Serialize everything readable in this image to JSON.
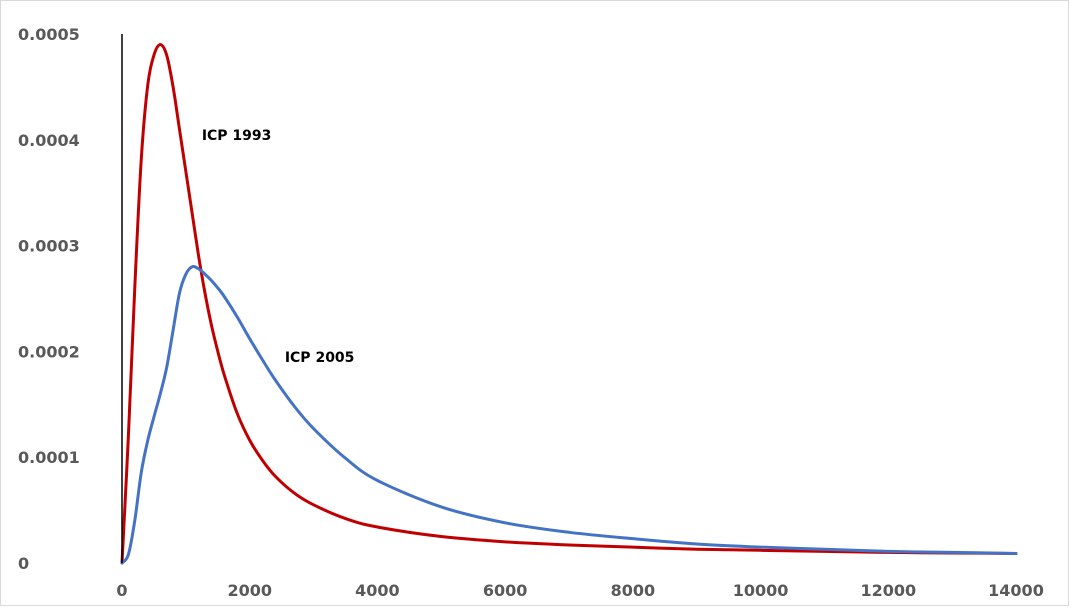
{
  "chart_data": {
    "type": "line",
    "title": "",
    "xlabel": "",
    "ylabel": "",
    "xlim": [
      0,
      14000
    ],
    "ylim": [
      0,
      0.0005
    ],
    "x_ticks": [
      0,
      2000,
      4000,
      6000,
      8000,
      10000,
      12000,
      14000
    ],
    "x_tick_labels": [
      "0",
      "2000",
      "4000",
      "6000",
      "8000",
      "10000",
      "12000",
      "14000"
    ],
    "y_ticks": [
      0,
      0.0001,
      0.0002,
      0.0003,
      0.0004,
      0.0005
    ],
    "y_tick_labels": [
      "0",
      "0.0001",
      "0.0002",
      "0.0003",
      "0.0004",
      "0.0005"
    ],
    "grid": false,
    "legend": "none",
    "series": [
      {
        "name": "ICP 1993",
        "color": "#c00000",
        "x": [
          0,
          100,
          200,
          300,
          400,
          500,
          600,
          700,
          800,
          900,
          1000,
          1100,
          1200,
          1300,
          1400,
          1500,
          1600,
          1800,
          2000,
          2200,
          2400,
          2700,
          3000,
          3500,
          4000,
          5000,
          6000,
          7000,
          8000,
          9000,
          10000,
          11000,
          12000,
          13000,
          14000
        ],
        "y": [
          0,
          0.00012,
          0.00026,
          0.00038,
          0.00045,
          0.00048,
          0.00049,
          0.00048,
          0.00045,
          0.00041,
          0.00037,
          0.00033,
          0.00029,
          0.000255,
          0.000225,
          0.0002,
          0.000178,
          0.000142,
          0.000116,
          9.7e-05,
          8.2e-05,
          6.6e-05,
          5.5e-05,
          4.2e-05,
          3.4e-05,
          2.5e-05,
          2e-05,
          1.7e-05,
          1.5e-05,
          1.3e-05,
          1.2e-05,
          1.1e-05,
          1e-05,
          9.5e-06,
          9e-06
        ]
      },
      {
        "name": "ICP 2005",
        "color": "#4472c4",
        "x": [
          0,
          100,
          200,
          300,
          400,
          500,
          600,
          700,
          800,
          900,
          1000,
          1100,
          1200,
          1300,
          1400,
          1500,
          1600,
          1800,
          2000,
          2200,
          2400,
          2700,
          3000,
          3500,
          4000,
          5000,
          6000,
          7000,
          8000,
          9000,
          10000,
          11000,
          12000,
          13000,
          14000
        ],
        "y": [
          0,
          8e-06,
          4e-05,
          8.5e-05,
          0.000115,
          0.000138,
          0.00016,
          0.000185,
          0.00022,
          0.000255,
          0.000273,
          0.00028,
          0.000278,
          0.000273,
          0.000267,
          0.00026,
          0.000252,
          0.000233,
          0.000212,
          0.000192,
          0.000173,
          0.000148,
          0.000127,
          9.9e-05,
          7.8e-05,
          5.3e-05,
          3.8e-05,
          2.9e-05,
          2.3e-05,
          1.8e-05,
          1.5e-05,
          1.3e-05,
          1.1e-05,
          1e-05,
          9e-06
        ]
      }
    ],
    "annotations": [
      {
        "text": "ICP 1993",
        "x": 1250,
        "y": 0.0004
      },
      {
        "text": "ICP 2005",
        "x": 2550,
        "y": 0.00019
      }
    ]
  }
}
